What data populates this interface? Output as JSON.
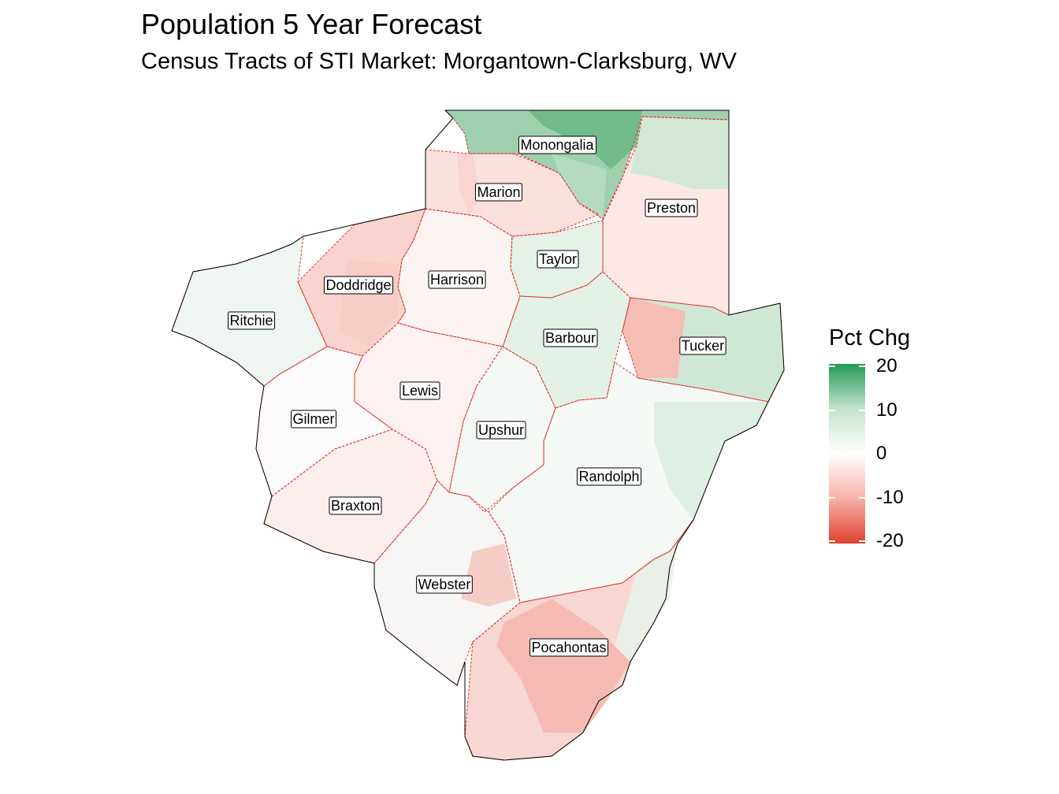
{
  "title": "Population 5 Year Forecast",
  "subtitle": "Census Tracts of STI Market: Morgantown-Clarksburg, WV",
  "legend": {
    "title": "Pct Chg",
    "ticks": [
      "20",
      "10",
      "0",
      "-10",
      "-20"
    ],
    "colors": {
      "high": "#239a55",
      "mid": "#ffffff",
      "low": "#e0402e"
    }
  },
  "counties": [
    {
      "name": "Monongalia",
      "pct_chg": 10,
      "color": "#9fd0ad"
    },
    {
      "name": "Marion",
      "pct_chg": -3,
      "color": "#fbe1dd"
    },
    {
      "name": "Preston",
      "pct_chg": -2,
      "color": "#fde8e5"
    },
    {
      "name": "Taylor",
      "pct_chg": 4,
      "color": "#e5f2e8"
    },
    {
      "name": "Doddridge",
      "pct_chg": -5,
      "color": "#f9d3cd"
    },
    {
      "name": "Harrison",
      "pct_chg": 1,
      "color": "#fbf4f3"
    },
    {
      "name": "Ritchie",
      "pct_chg": 2,
      "color": "#eff6f1"
    },
    {
      "name": "Barbour",
      "pct_chg": 5,
      "color": "#e3f1e6"
    },
    {
      "name": "Tucker",
      "pct_chg": 4,
      "color": "#cfe8d5"
    },
    {
      "name": "Lewis",
      "pct_chg": -1,
      "color": "#fdf2f1"
    },
    {
      "name": "Gilmer",
      "pct_chg": 0,
      "color": "#fdfafb"
    },
    {
      "name": "Upshur",
      "pct_chg": 1,
      "color": "#f5f9f5"
    },
    {
      "name": "Randolph",
      "pct_chg": 1,
      "color": "#f4f9f5"
    },
    {
      "name": "Braxton",
      "pct_chg": -2,
      "color": "#fbeeec"
    },
    {
      "name": "Webster",
      "pct_chg": -1,
      "color": "#f8f6f4"
    },
    {
      "name": "Pocahontas",
      "pct_chg": -5,
      "color": "#f8d7d2"
    }
  ],
  "sub_areas": [
    {
      "name": "mon-northeast",
      "color": "#6db886"
    },
    {
      "name": "mon-central",
      "color": "#b6dcc1"
    },
    {
      "name": "preston-north",
      "color": "#cde7d3"
    },
    {
      "name": "tucker-west",
      "color": "#f7b9b0"
    },
    {
      "name": "randolph-east",
      "color": "#dcede1"
    },
    {
      "name": "webster-east",
      "color": "#f5c8c1"
    },
    {
      "name": "pocahontas-central",
      "color": "#f4b8ae"
    },
    {
      "name": "pocahontas-east",
      "color": "#e8f3ea"
    },
    {
      "name": "marion-west",
      "color": "#f8d3ce"
    },
    {
      "name": "doddridge-east",
      "color": "#f7ccc5"
    }
  ]
}
